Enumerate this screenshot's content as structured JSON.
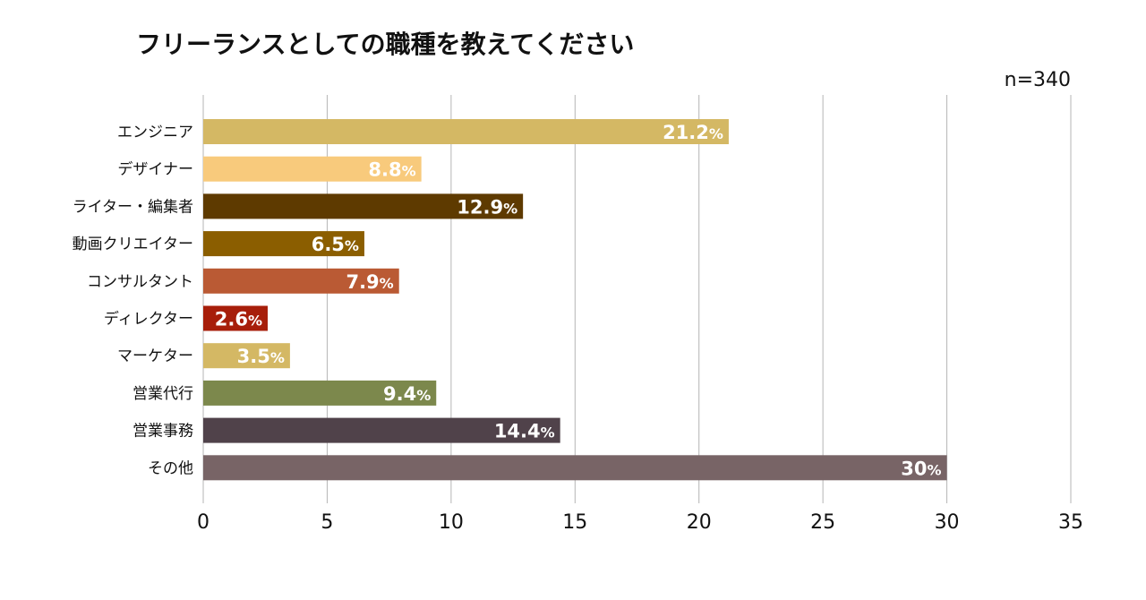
{
  "chart_data": {
    "type": "bar",
    "orientation": "horizontal",
    "title": "フリーランスとしての職種を教えてください",
    "sample_size": "n=340",
    "categories": [
      "エンジニア",
      "デザイナー",
      "ライター・編集者",
      "動画クリエイター",
      "コンサルタント",
      "ディレクター",
      "マーケター",
      "営業代行",
      "営業事務",
      "その他"
    ],
    "values": [
      21.2,
      8.8,
      12.9,
      6.5,
      7.9,
      2.6,
      3.5,
      9.4,
      14.4,
      30
    ],
    "value_labels": [
      "21.2",
      "8.8",
      "12.9",
      "6.5",
      "7.9",
      "2.6",
      "3.5",
      "9.4",
      "14.4",
      "30"
    ],
    "value_unit": "%",
    "colors": [
      "#D4B864",
      "#F8CA7C",
      "#5E3A00",
      "#8B5E00",
      "#BA5A34",
      "#A71E0A",
      "#D4B864",
      "#7C884C",
      "#50424A",
      "#786466"
    ],
    "xlim": [
      0,
      35
    ],
    "xticks": [
      0,
      5,
      10,
      15,
      20,
      25,
      30,
      35
    ],
    "xtick_labels": [
      "0",
      "5",
      "10",
      "15",
      "20",
      "25",
      "30",
      "35"
    ],
    "grid": true,
    "legend": "none"
  }
}
